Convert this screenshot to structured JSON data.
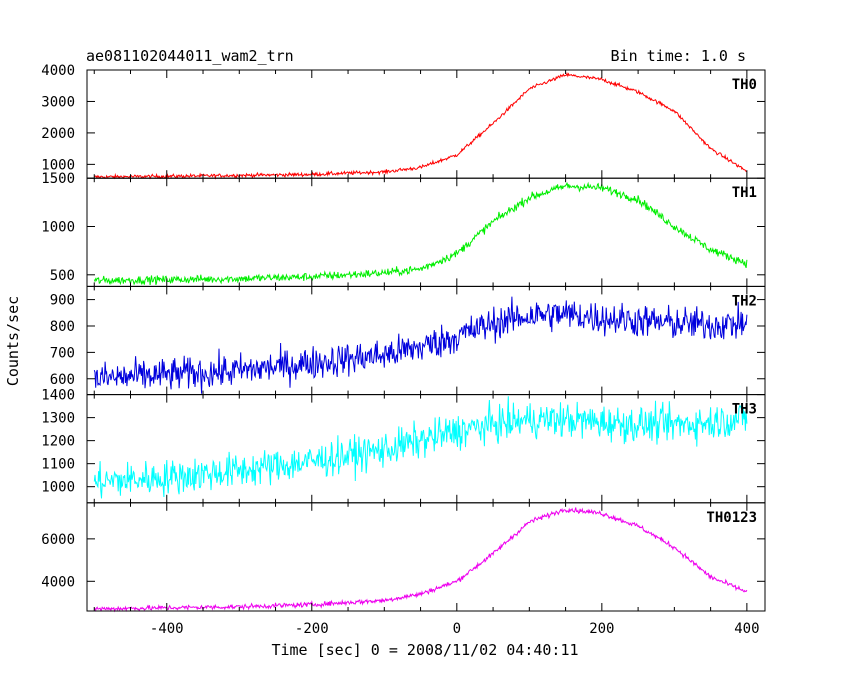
{
  "chart_data": {
    "type": "line",
    "title_left": "ae081102044011_wam2_trn",
    "title_right": "Bin time: 1.0 s",
    "xlabel": "Time [sec] 0 = 2008/11/02 04:40:11",
    "ylabel": "Counts/sec",
    "xlim": [
      -510,
      425
    ],
    "xticks": [
      -400,
      -200,
      0,
      200,
      400
    ],
    "grid": false,
    "panels": [
      {
        "name": "TH0",
        "color": "#ff0000",
        "ylim": [
          560,
          4000
        ],
        "yticks": [
          1000,
          2000,
          3000,
          4000
        ],
        "noise": 40,
        "profile": [
          [
            -500,
            600
          ],
          [
            -400,
            620
          ],
          [
            -300,
            650
          ],
          [
            -200,
            680
          ],
          [
            -100,
            760
          ],
          [
            -50,
            900
          ],
          [
            0,
            1300
          ],
          [
            50,
            2300
          ],
          [
            100,
            3400
          ],
          [
            150,
            3850
          ],
          [
            200,
            3700
          ],
          [
            250,
            3300
          ],
          [
            300,
            2700
          ],
          [
            350,
            1500
          ],
          [
            400,
            780
          ]
        ]
      },
      {
        "name": "TH1",
        "color": "#00ee00",
        "ylim": [
          380,
          1500
        ],
        "yticks": [
          500,
          1000,
          1500
        ],
        "noise": 30,
        "profile": [
          [
            -500,
            440
          ],
          [
            -400,
            450
          ],
          [
            -300,
            460
          ],
          [
            -200,
            480
          ],
          [
            -100,
            520
          ],
          [
            -50,
            560
          ],
          [
            0,
            720
          ],
          [
            50,
            1050
          ],
          [
            100,
            1300
          ],
          [
            150,
            1420
          ],
          [
            200,
            1400
          ],
          [
            250,
            1280
          ],
          [
            300,
            1000
          ],
          [
            350,
            760
          ],
          [
            400,
            620
          ]
        ]
      },
      {
        "name": "TH2",
        "color": "#0000dd",
        "ylim": [
          540,
          950
        ],
        "yticks": [
          600,
          700,
          800,
          900
        ],
        "noise": 45,
        "profile": [
          [
            -500,
            600
          ],
          [
            -400,
            615
          ],
          [
            -300,
            630
          ],
          [
            -200,
            660
          ],
          [
            -100,
            690
          ],
          [
            -50,
            720
          ],
          [
            0,
            760
          ],
          [
            50,
            810
          ],
          [
            100,
            840
          ],
          [
            150,
            845
          ],
          [
            200,
            830
          ],
          [
            250,
            820
          ],
          [
            300,
            810
          ],
          [
            350,
            805
          ],
          [
            400,
            810
          ]
        ]
      },
      {
        "name": "TH3",
        "color": "#00ffff",
        "ylim": [
          930,
          1400
        ],
        "yticks": [
          1000,
          1100,
          1200,
          1300,
          1400
        ],
        "noise": 55,
        "profile": [
          [
            -500,
            1020
          ],
          [
            -400,
            1040
          ],
          [
            -300,
            1070
          ],
          [
            -200,
            1110
          ],
          [
            -100,
            1160
          ],
          [
            -50,
            1200
          ],
          [
            0,
            1240
          ],
          [
            50,
            1270
          ],
          [
            100,
            1290
          ],
          [
            150,
            1290
          ],
          [
            200,
            1280
          ],
          [
            250,
            1270
          ],
          [
            300,
            1270
          ],
          [
            350,
            1280
          ],
          [
            400,
            1300
          ]
        ]
      },
      {
        "name": "TH0123",
        "color": "#ee00ee",
        "ylim": [
          2600,
          7700
        ],
        "yticks": [
          4000,
          6000
        ],
        "noise": 80,
        "profile": [
          [
            -500,
            2700
          ],
          [
            -400,
            2750
          ],
          [
            -300,
            2800
          ],
          [
            -200,
            2900
          ],
          [
            -100,
            3100
          ],
          [
            -50,
            3400
          ],
          [
            0,
            4000
          ],
          [
            50,
            5300
          ],
          [
            100,
            6800
          ],
          [
            150,
            7400
          ],
          [
            200,
            7200
          ],
          [
            250,
            6600
          ],
          [
            300,
            5600
          ],
          [
            350,
            4200
          ],
          [
            400,
            3500
          ]
        ]
      }
    ]
  }
}
